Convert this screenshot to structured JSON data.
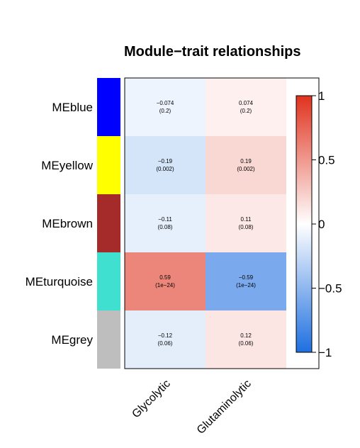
{
  "chart_data": {
    "type": "heatmap",
    "title": "Module−trait relationships",
    "rows": [
      {
        "label": "MEblue",
        "module_color": "#0000ff"
      },
      {
        "label": "MEyellow",
        "module_color": "#ffff00"
      },
      {
        "label": "MEbrown",
        "module_color": "#a52a2a"
      },
      {
        "label": "MEturquoise",
        "module_color": "#40e0d0"
      },
      {
        "label": "MEgrey",
        "module_color": "#bebebe"
      }
    ],
    "columns": [
      "Glycolytic",
      "Glutaminolytic"
    ],
    "values": [
      [
        -0.074,
        0.074
      ],
      [
        -0.19,
        0.19
      ],
      [
        -0.11,
        0.11
      ],
      [
        0.59,
        -0.59
      ],
      [
        -0.12,
        0.12
      ]
    ],
    "cell_labels": [
      [
        "−0.074",
        "0.074"
      ],
      [
        "−0.19",
        "0.19"
      ],
      [
        "−0.11",
        "0.11"
      ],
      [
        "0.59",
        "−0.59"
      ],
      [
        "−0.12",
        "0.12"
      ]
    ],
    "pvalue_labels": [
      [
        "(0.2)",
        "(0.2)"
      ],
      [
        "(0.002)",
        "(0.002)"
      ],
      [
        "(0.08)",
        "(0.08)"
      ],
      [
        "(1e−24)",
        "(1e−24)"
      ],
      [
        "(0.06)",
        "(0.06)"
      ]
    ],
    "colorbar": {
      "range": [
        -1,
        1
      ],
      "ticks": [
        1,
        0.5,
        0,
        -0.5,
        -1
      ],
      "tick_labels": [
        "1",
        "0.5",
        "0",
        "−0.5",
        "−1"
      ],
      "colors": {
        "low": "#1e6fe0",
        "mid": "#ffffff",
        "high": "#e0321e"
      }
    }
  }
}
